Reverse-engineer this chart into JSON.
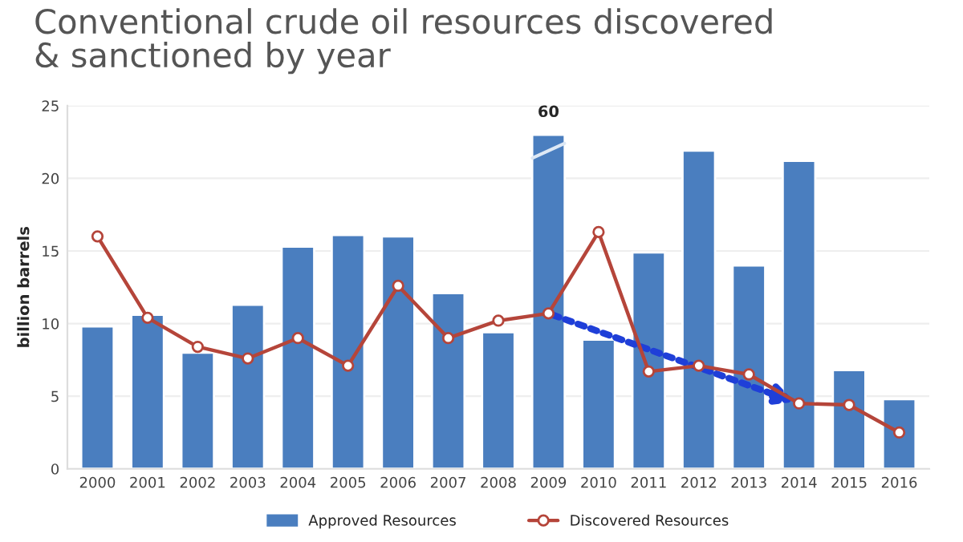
{
  "chart_data": {
    "type": "bar",
    "title": "Conventional crude oil resources discovered\n& sanctioned by year",
    "ylabel": "billion barrels",
    "categories": [
      "2000",
      "2001",
      "2002",
      "2003",
      "2004",
      "2005",
      "2006",
      "2007",
      "2008",
      "2009",
      "2010",
      "2011",
      "2012",
      "2013",
      "2014",
      "2015",
      "2016"
    ],
    "series": [
      {
        "name": "Approved Resources",
        "color": "#4a7ebf",
        "values": [
          9.8,
          10.6,
          8.0,
          11.3,
          15.3,
          16.1,
          16.0,
          12.1,
          9.4,
          23.0,
          8.9,
          14.9,
          21.9,
          14.0,
          21.2,
          6.8,
          4.8
        ]
      },
      {
        "name": "Discovered Resources",
        "type": "line",
        "color": "#b5453a",
        "marker": "circle",
        "values": [
          16.0,
          10.4,
          8.4,
          7.6,
          9.0,
          7.1,
          12.6,
          9.0,
          10.2,
          10.7,
          16.3,
          6.7,
          7.1,
          6.5,
          4.5,
          4.4,
          2.5
        ]
      }
    ],
    "annotations": [
      {
        "text": "60",
        "x": "2009",
        "y": 23.0
      }
    ],
    "ylim": [
      0,
      25
    ],
    "yticks": [
      0,
      5,
      10,
      15,
      20,
      25
    ],
    "grid": "y",
    "legend": "bottom"
  }
}
